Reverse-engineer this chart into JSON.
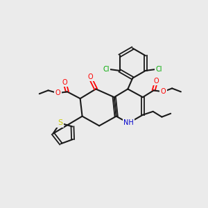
{
  "bg_color": "#ebebeb",
  "atom_colors": {
    "O": "#ff0000",
    "N": "#0000cc",
    "S": "#cccc00",
    "Cl": "#00aa00",
    "C": "#1a1a1a",
    "H": "#1a1a1a"
  },
  "bond_color": "#1a1a1a",
  "font_size_atom": 7,
  "font_size_small": 5.5
}
